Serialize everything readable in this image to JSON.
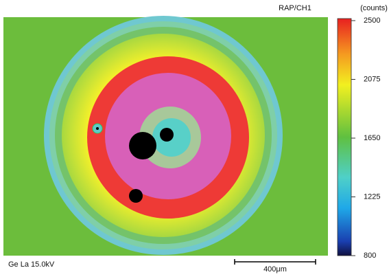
{
  "chart_data": {
    "type": "heatmap",
    "title": "RAP/CH1",
    "colorbar_label": "(counts)",
    "clim": [
      800,
      2500
    ],
    "cticks": [
      800,
      1225,
      1650,
      2075,
      2500
    ],
    "condition_label": "Ge La 15.0kV",
    "scale_bar_label": "400μm"
  }
}
